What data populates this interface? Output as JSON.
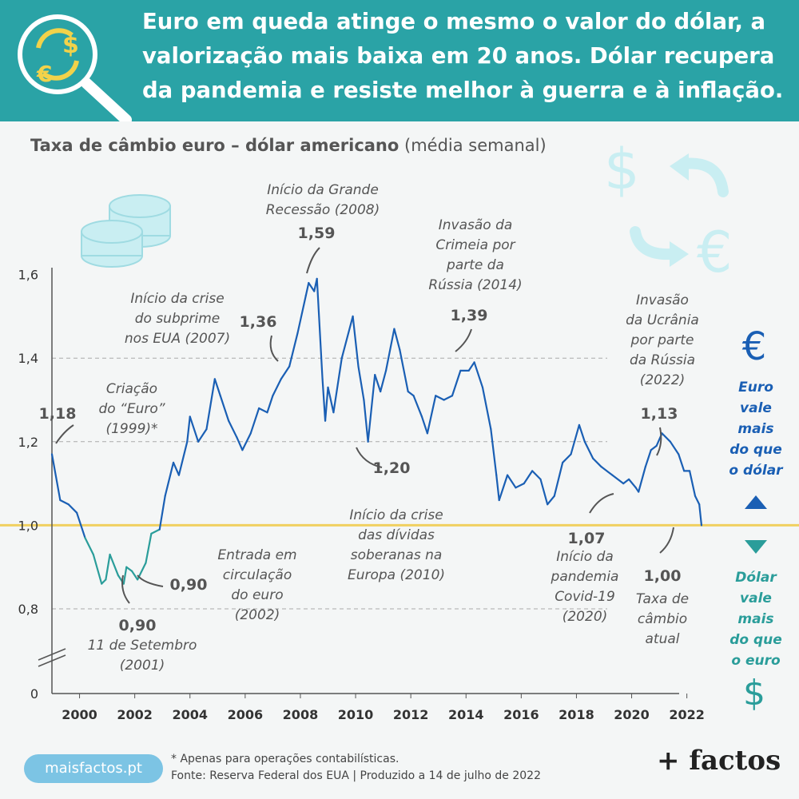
{
  "header": {
    "headline_lines": [
      "Euro em queda atinge o mesmo o valor do dólar, a",
      "valorização mais baixa em 20 anos. Dólar recupera",
      "da pandemia e resiste melhor à guerra e à inflação."
    ]
  },
  "chart_title": {
    "bold": "Taxa de câmbio euro – dólar americano",
    "normal": "(média semanal)"
  },
  "colors": {
    "header_bg": "#2aa3a6",
    "euro_line": "#1a5fb4",
    "dollar_line": "#2a9d9a",
    "parity_line": "#f0d060",
    "euro_text": "#1a5fb4",
    "dollar_text": "#2a9d9a",
    "icon_light": "#c9eef2"
  },
  "icons": [
    "magnifier-exchange-icon",
    "coins-stack-icon",
    "dollar-sign-icon",
    "euro-sign-icon",
    "exchange-arrows-icon",
    "triangle-up-icon",
    "triangle-down-icon"
  ],
  "chart_data": {
    "type": "line",
    "x_start_year": 1999,
    "y_ticks": [
      "0",
      "0,8",
      "1,0",
      "1,2",
      "1,4",
      "1,6"
    ],
    "x_ticks": [
      "2000",
      "2002",
      "2004",
      "2006",
      "2008",
      "2010",
      "2012",
      "2014",
      "2016",
      "2018",
      "2020",
      "2022"
    ],
    "y_break": true,
    "parity": 1.0,
    "series": [
      {
        "points": [
          [
            1999.0,
            1.17
          ],
          [
            1999.3,
            1.06
          ],
          [
            1999.6,
            1.05
          ],
          [
            1999.9,
            1.03
          ],
          [
            2000.2,
            0.97
          ],
          [
            2000.5,
            0.93
          ],
          [
            2000.8,
            0.86
          ],
          [
            2000.95,
            0.87
          ],
          [
            2001.1,
            0.93
          ],
          [
            2001.4,
            0.88
          ],
          [
            2001.6,
            0.86
          ],
          [
            2001.7,
            0.9
          ],
          [
            2001.9,
            0.89
          ],
          [
            2002.1,
            0.87
          ],
          [
            2002.4,
            0.91
          ],
          [
            2002.6,
            0.98
          ],
          [
            2002.9,
            0.99
          ],
          [
            2003.1,
            1.07
          ],
          [
            2003.4,
            1.15
          ],
          [
            2003.6,
            1.12
          ],
          [
            2003.9,
            1.2
          ],
          [
            2004.0,
            1.26
          ],
          [
            2004.3,
            1.2
          ],
          [
            2004.6,
            1.23
          ],
          [
            2004.9,
            1.35
          ],
          [
            2005.1,
            1.31
          ],
          [
            2005.4,
            1.25
          ],
          [
            2005.7,
            1.21
          ],
          [
            2005.9,
            1.18
          ],
          [
            2006.2,
            1.22
          ],
          [
            2006.5,
            1.28
          ],
          [
            2006.8,
            1.27
          ],
          [
            2007.0,
            1.31
          ],
          [
            2007.3,
            1.35
          ],
          [
            2007.6,
            1.38
          ],
          [
            2007.9,
            1.46
          ],
          [
            2008.2,
            1.55
          ],
          [
            2008.3,
            1.58
          ],
          [
            2008.5,
            1.56
          ],
          [
            2008.6,
            1.59
          ],
          [
            2008.8,
            1.35
          ],
          [
            2008.9,
            1.25
          ],
          [
            2009.0,
            1.33
          ],
          [
            2009.2,
            1.27
          ],
          [
            2009.5,
            1.4
          ],
          [
            2009.9,
            1.5
          ],
          [
            2010.1,
            1.38
          ],
          [
            2010.3,
            1.3
          ],
          [
            2010.45,
            1.2
          ],
          [
            2010.7,
            1.36
          ],
          [
            2010.9,
            1.32
          ],
          [
            2011.1,
            1.37
          ],
          [
            2011.4,
            1.47
          ],
          [
            2011.6,
            1.42
          ],
          [
            2011.9,
            1.32
          ],
          [
            2012.1,
            1.31
          ],
          [
            2012.4,
            1.26
          ],
          [
            2012.6,
            1.22
          ],
          [
            2012.9,
            1.31
          ],
          [
            2013.2,
            1.3
          ],
          [
            2013.5,
            1.31
          ],
          [
            2013.8,
            1.37
          ],
          [
            2014.1,
            1.37
          ],
          [
            2014.3,
            1.39
          ],
          [
            2014.6,
            1.33
          ],
          [
            2014.9,
            1.23
          ],
          [
            2015.1,
            1.12
          ],
          [
            2015.2,
            1.06
          ],
          [
            2015.5,
            1.12
          ],
          [
            2015.8,
            1.09
          ],
          [
            2016.1,
            1.1
          ],
          [
            2016.4,
            1.13
          ],
          [
            2016.7,
            1.11
          ],
          [
            2016.95,
            1.05
          ],
          [
            2017.2,
            1.07
          ],
          [
            2017.5,
            1.15
          ],
          [
            2017.8,
            1.17
          ],
          [
            2018.1,
            1.24
          ],
          [
            2018.3,
            1.2
          ],
          [
            2018.6,
            1.16
          ],
          [
            2018.9,
            1.14
          ],
          [
            2019.3,
            1.12
          ],
          [
            2019.7,
            1.1
          ],
          [
            2019.9,
            1.11
          ],
          [
            2020.15,
            1.09
          ],
          [
            2020.25,
            1.08
          ],
          [
            2020.5,
            1.14
          ],
          [
            2020.7,
            1.18
          ],
          [
            2020.9,
            1.19
          ],
          [
            2021.1,
            1.22
          ],
          [
            2021.4,
            1.2
          ],
          [
            2021.7,
            1.17
          ],
          [
            2021.9,
            1.13
          ],
          [
            2022.1,
            1.13
          ],
          [
            2022.3,
            1.07
          ],
          [
            2022.45,
            1.05
          ],
          [
            2022.53,
            1.0
          ]
        ]
      }
    ],
    "annotations": [
      {
        "value": "1,18",
        "lines": [
          "Criação",
          "do “Euro”",
          "(1999)*"
        ]
      },
      {
        "value": "0,90",
        "lines": [
          "11 de Setembro",
          "(2001)"
        ]
      },
      {
        "value": "0,90",
        "lines": [
          "Entrada em",
          "circulação",
          "do euro",
          "(2002)"
        ]
      },
      {
        "value": "1,36",
        "lines": [
          "Início da crise",
          "do subprime",
          "nos EUA (2007)"
        ]
      },
      {
        "value": "1,59",
        "lines": [
          "Início da Grande",
          "Recessão (2008)"
        ]
      },
      {
        "value": "1,20",
        "lines": [
          "Início da crise",
          "das dívidas",
          "soberanas na",
          "Europa (2010)"
        ]
      },
      {
        "value": "1,39",
        "lines": [
          "Invasão da",
          "Crimeia por",
          "parte da",
          "Rússia (2014)"
        ]
      },
      {
        "value": "1,07",
        "lines": [
          "Início da",
          "pandemia",
          "Covid-19",
          "(2020)"
        ]
      },
      {
        "value": "1,13",
        "lines": [
          "Invasão",
          "da Ucrânia",
          "por parte",
          "da Rússia",
          "(2022)"
        ]
      },
      {
        "value": "1,00",
        "lines": [
          "Taxa de",
          "câmbio",
          "atual"
        ]
      }
    ],
    "side_labels": {
      "euro": [
        "Euro",
        "vale",
        "mais",
        "do que",
        "o dólar"
      ],
      "dollar": [
        "Dólar",
        "vale",
        "mais",
        "do que",
        "o euro"
      ]
    }
  },
  "footer": {
    "note": "* Apenas para operações contabilísticas.",
    "source": "Fonte: Reserva Federal dos EUA | Produzido a 14 de julho de 2022",
    "site": "maisfactos.pt",
    "brand": "+ factos"
  }
}
